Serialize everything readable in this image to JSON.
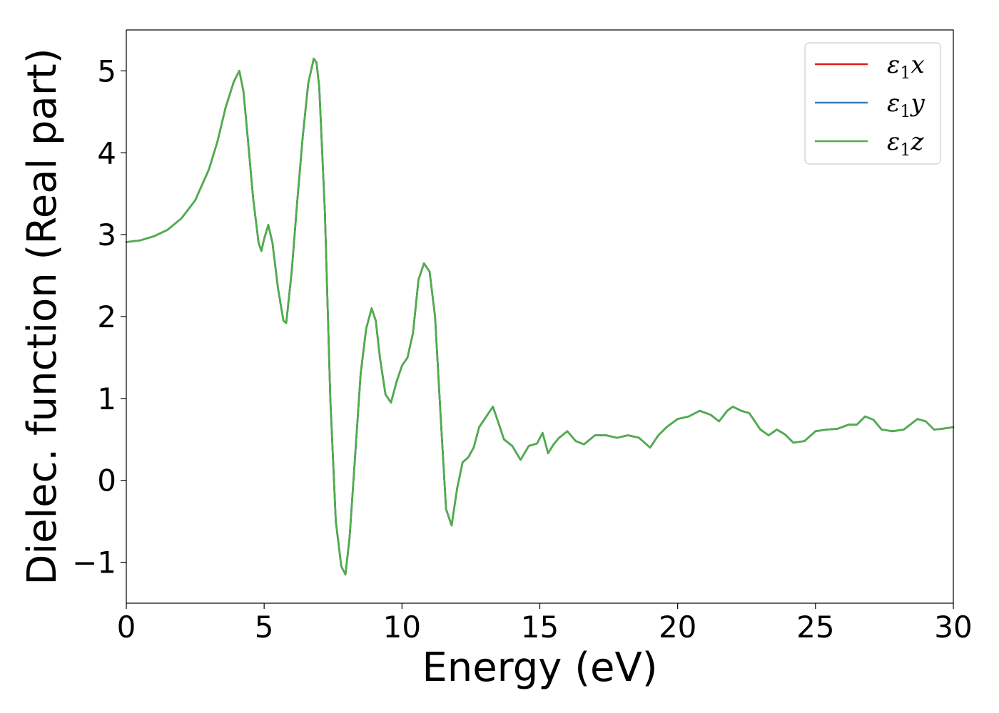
{
  "chart_data": {
    "type": "line",
    "title": "",
    "xlabel": "Energy (eV)",
    "ylabel": "Dielec. function (Real part)",
    "xlim": [
      0,
      30
    ],
    "ylim": [
      -1.5,
      5.5
    ],
    "x_ticks": [
      0,
      5,
      10,
      15,
      20,
      25,
      30
    ],
    "x_tick_labels": [
      "0",
      "5",
      "10",
      "15",
      "20",
      "25",
      "30"
    ],
    "y_ticks": [
      -1,
      0,
      1,
      2,
      3,
      4,
      5
    ],
    "y_tick_labels": [
      "−1",
      "0",
      "1",
      "2",
      "3",
      "4",
      "5"
    ],
    "grid": false,
    "legend_position": "top-right",
    "x": [
      0,
      0.5,
      1.0,
      1.5,
      2.0,
      2.5,
      3.0,
      3.3,
      3.6,
      3.9,
      4.1,
      4.25,
      4.4,
      4.6,
      4.8,
      4.9,
      5.0,
      5.15,
      5.3,
      5.5,
      5.7,
      5.8,
      6.0,
      6.2,
      6.4,
      6.6,
      6.8,
      6.9,
      7.0,
      7.2,
      7.4,
      7.6,
      7.8,
      7.95,
      8.1,
      8.3,
      8.5,
      8.7,
      8.9,
      9.05,
      9.2,
      9.4,
      9.6,
      9.8,
      10.0,
      10.2,
      10.4,
      10.6,
      10.8,
      11.0,
      11.2,
      11.4,
      11.6,
      11.8,
      12.0,
      12.2,
      12.4,
      12.6,
      12.8,
      13.0,
      13.3,
      13.5,
      13.7,
      14.0,
      14.3,
      14.6,
      14.9,
      15.1,
      15.3,
      15.5,
      15.7,
      16.0,
      16.3,
      16.6,
      17.0,
      17.4,
      17.8,
      18.2,
      18.6,
      19.0,
      19.3,
      19.6,
      20.0,
      20.4,
      20.8,
      21.2,
      21.5,
      21.8,
      22.0,
      22.3,
      22.6,
      23.0,
      23.3,
      23.6,
      23.9,
      24.2,
      24.6,
      25.0,
      25.4,
      25.8,
      26.2,
      26.5,
      26.8,
      27.1,
      27.4,
      27.8,
      28.2,
      28.7,
      29.0,
      29.3,
      29.6,
      30.0
    ],
    "series": [
      {
        "name": "ε₁x",
        "color": "#e41a1c",
        "values": [
          2.91,
          2.93,
          2.98,
          3.06,
          3.2,
          3.42,
          3.8,
          4.13,
          4.55,
          4.87,
          5.0,
          4.75,
          4.2,
          3.45,
          2.9,
          2.8,
          2.95,
          3.12,
          2.9,
          2.35,
          1.95,
          1.92,
          2.55,
          3.4,
          4.2,
          4.85,
          5.15,
          5.1,
          4.8,
          3.3,
          1.0,
          -0.5,
          -1.05,
          -1.15,
          -0.7,
          0.3,
          1.3,
          1.85,
          2.1,
          1.95,
          1.5,
          1.05,
          0.95,
          1.2,
          1.4,
          1.5,
          1.8,
          2.45,
          2.65,
          2.55,
          2.0,
          0.8,
          -0.35,
          -0.55,
          -0.1,
          0.22,
          0.28,
          0.4,
          0.65,
          0.75,
          0.9,
          0.7,
          0.5,
          0.42,
          0.25,
          0.42,
          0.45,
          0.58,
          0.33,
          0.44,
          0.52,
          0.6,
          0.48,
          0.44,
          0.55,
          0.55,
          0.52,
          0.55,
          0.52,
          0.4,
          0.55,
          0.65,
          0.75,
          0.78,
          0.85,
          0.8,
          0.72,
          0.85,
          0.9,
          0.85,
          0.82,
          0.62,
          0.55,
          0.62,
          0.56,
          0.46,
          0.48,
          0.6,
          0.62,
          0.63,
          0.68,
          0.68,
          0.78,
          0.74,
          0.62,
          0.6,
          0.62,
          0.75,
          0.72,
          0.62,
          0.63,
          0.65
        ]
      },
      {
        "name": "ε₁y",
        "color": "#377eb8",
        "values": [
          2.91,
          2.93,
          2.98,
          3.06,
          3.2,
          3.42,
          3.8,
          4.13,
          4.55,
          4.87,
          5.0,
          4.75,
          4.2,
          3.45,
          2.9,
          2.8,
          2.95,
          3.12,
          2.9,
          2.35,
          1.95,
          1.92,
          2.55,
          3.4,
          4.2,
          4.85,
          5.15,
          5.1,
          4.8,
          3.3,
          1.0,
          -0.5,
          -1.05,
          -1.15,
          -0.7,
          0.3,
          1.3,
          1.85,
          2.1,
          1.95,
          1.5,
          1.05,
          0.95,
          1.2,
          1.4,
          1.5,
          1.8,
          2.45,
          2.65,
          2.55,
          2.0,
          0.8,
          -0.35,
          -0.55,
          -0.1,
          0.22,
          0.28,
          0.4,
          0.65,
          0.75,
          0.9,
          0.7,
          0.5,
          0.42,
          0.25,
          0.42,
          0.45,
          0.58,
          0.33,
          0.44,
          0.52,
          0.6,
          0.48,
          0.44,
          0.55,
          0.55,
          0.52,
          0.55,
          0.52,
          0.4,
          0.55,
          0.65,
          0.75,
          0.78,
          0.85,
          0.8,
          0.72,
          0.85,
          0.9,
          0.85,
          0.82,
          0.62,
          0.55,
          0.62,
          0.56,
          0.46,
          0.48,
          0.6,
          0.62,
          0.63,
          0.68,
          0.68,
          0.78,
          0.74,
          0.62,
          0.6,
          0.62,
          0.75,
          0.72,
          0.62,
          0.63,
          0.65
        ]
      },
      {
        "name": "ε₁z",
        "color": "#4daf4a",
        "values": [
          2.91,
          2.93,
          2.98,
          3.06,
          3.2,
          3.42,
          3.8,
          4.13,
          4.55,
          4.87,
          5.0,
          4.75,
          4.2,
          3.45,
          2.9,
          2.8,
          2.95,
          3.12,
          2.9,
          2.35,
          1.95,
          1.92,
          2.55,
          3.4,
          4.2,
          4.85,
          5.15,
          5.1,
          4.8,
          3.3,
          1.0,
          -0.5,
          -1.05,
          -1.15,
          -0.7,
          0.3,
          1.3,
          1.85,
          2.1,
          1.95,
          1.5,
          1.05,
          0.95,
          1.2,
          1.4,
          1.5,
          1.8,
          2.45,
          2.65,
          2.55,
          2.0,
          0.8,
          -0.35,
          -0.55,
          -0.1,
          0.22,
          0.28,
          0.4,
          0.65,
          0.75,
          0.9,
          0.7,
          0.5,
          0.42,
          0.25,
          0.42,
          0.45,
          0.58,
          0.33,
          0.44,
          0.52,
          0.6,
          0.48,
          0.44,
          0.55,
          0.55,
          0.52,
          0.55,
          0.52,
          0.4,
          0.55,
          0.65,
          0.75,
          0.78,
          0.85,
          0.8,
          0.72,
          0.85,
          0.9,
          0.85,
          0.82,
          0.62,
          0.55,
          0.62,
          0.56,
          0.46,
          0.48,
          0.6,
          0.62,
          0.63,
          0.68,
          0.68,
          0.78,
          0.74,
          0.62,
          0.6,
          0.62,
          0.75,
          0.72,
          0.62,
          0.63,
          0.65
        ]
      }
    ],
    "legend_labels": [
      {
        "base": "ε",
        "sub": "1",
        "tail": "x"
      },
      {
        "base": "ε",
        "sub": "1",
        "tail": "y"
      },
      {
        "base": "ε",
        "sub": "1",
        "tail": "z"
      }
    ]
  }
}
